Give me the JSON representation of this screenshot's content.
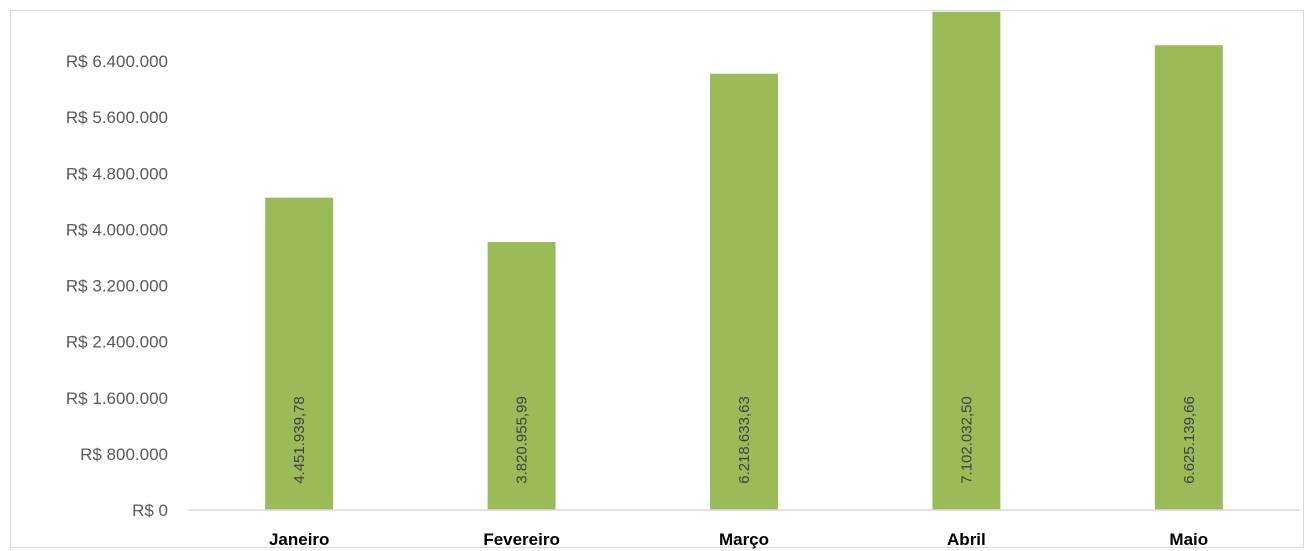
{
  "chart_data": {
    "type": "bar",
    "categories": [
      "Janeiro",
      "Fevereiro",
      "Março",
      "Abril",
      "Maio"
    ],
    "values": [
      4451939.78,
      3820955.99,
      6218633.63,
      7102032.5,
      6625139.66
    ],
    "data_labels": [
      "4.451.939,78",
      "3.820.955,99",
      "6.218.633,63",
      "7.102.032,50",
      "6.625.139,66"
    ],
    "title": "",
    "xlabel": "",
    "ylabel": "",
    "ylim": [
      0,
      7200000
    ],
    "yticks": [
      0,
      800000,
      1600000,
      2400000,
      3200000,
      4000000,
      4800000,
      5600000,
      6400000
    ],
    "ytick_labels": [
      "R$ 0",
      "R$ 800.000",
      "R$ 1.600.000",
      "R$ 2.400.000",
      "R$ 3.200.000",
      "R$ 4.000.000",
      "R$ 4.800.000",
      "R$ 5.600.000",
      "R$ 6.400.000"
    ],
    "grid": false,
    "legend": "none",
    "bar_color": "#9bbb59",
    "axis_color": "#d9d9d9"
  }
}
